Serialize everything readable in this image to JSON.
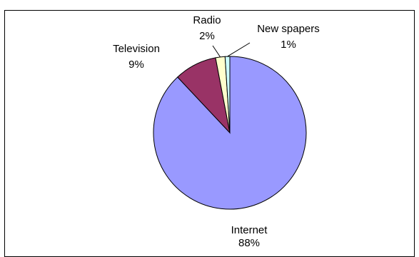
{
  "chart_data": {
    "type": "pie",
    "title": "",
    "slices": [
      {
        "label": "Internet",
        "percent_label": "88%",
        "value": 88,
        "color": "#9999ff"
      },
      {
        "label": "Television",
        "percent_label": "9%",
        "value": 9,
        "color": "#993366"
      },
      {
        "label": "Radio",
        "percent_label": "2%",
        "value": 2,
        "color": "#ffffcc"
      },
      {
        "label": "New spapers",
        "percent_label": "1%",
        "value": 1,
        "color": "#ccffff"
      }
    ],
    "legend": "none"
  }
}
